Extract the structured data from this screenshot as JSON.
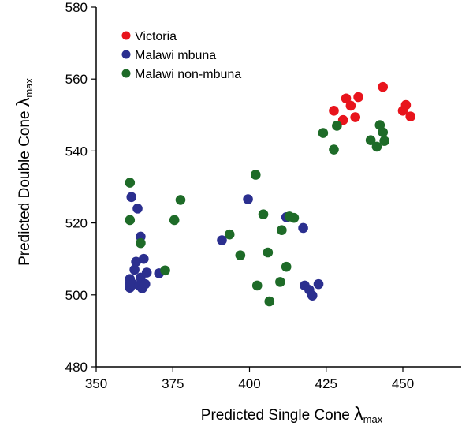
{
  "chart_data": {
    "type": "scatter",
    "xlabel": {
      "main": "Predicted Single Cone ",
      "symbol": "λ",
      "sub": "max"
    },
    "ylabel": {
      "main": "Predicted Double Cone ",
      "symbol": "λ",
      "sub": "max"
    },
    "xlim": [
      350,
      470
    ],
    "ylim": [
      480,
      580
    ],
    "xticks": [
      350,
      375,
      400,
      425,
      450
    ],
    "yticks": [
      480,
      500,
      520,
      540,
      560,
      580
    ],
    "legend_position": "top-left",
    "series": [
      {
        "name": "Victoria",
        "color": "#e8141c",
        "points": [
          [
            427.5,
            551.2
          ],
          [
            430.5,
            548.6
          ],
          [
            431.5,
            554.6
          ],
          [
            433,
            552.6
          ],
          [
            434.5,
            549.4
          ],
          [
            435.5,
            555.0
          ],
          [
            443.5,
            557.8
          ],
          [
            450,
            551.2
          ],
          [
            451,
            552.8
          ],
          [
            452.5,
            549.6
          ]
        ]
      },
      {
        "name": "Malawi mbuna",
        "color": "#2b2f8f",
        "points": [
          [
            361,
            502.0
          ],
          [
            361,
            503.2
          ],
          [
            361,
            504.4
          ],
          [
            361.5,
            527.2
          ],
          [
            362,
            503.0
          ],
          [
            362.5,
            507.0
          ],
          [
            363,
            509.2
          ],
          [
            363.5,
            524.0
          ],
          [
            364,
            502.6
          ],
          [
            364.5,
            504.8
          ],
          [
            364.5,
            516.2
          ],
          [
            365,
            501.8
          ],
          [
            365.5,
            510.0
          ],
          [
            366,
            503.0
          ],
          [
            366.5,
            506.2
          ],
          [
            370.5,
            506.0
          ],
          [
            391,
            515.2
          ],
          [
            399.5,
            526.6
          ],
          [
            412,
            521.6
          ],
          [
            417.5,
            518.6
          ],
          [
            418,
            502.6
          ],
          [
            419.5,
            501.4
          ],
          [
            420.5,
            499.8
          ],
          [
            422.5,
            503.0
          ]
        ]
      },
      {
        "name": "Malawi non-mbuna",
        "color": "#1e6b28",
        "points": [
          [
            361,
            531.2
          ],
          [
            361,
            520.8
          ],
          [
            364.5,
            514.4
          ],
          [
            372.5,
            506.8
          ],
          [
            375.5,
            520.8
          ],
          [
            377.5,
            526.4
          ],
          [
            393.5,
            516.8
          ],
          [
            397,
            511.0
          ],
          [
            402,
            533.4
          ],
          [
            402.5,
            502.6
          ],
          [
            404.5,
            522.4
          ],
          [
            406,
            511.8
          ],
          [
            406.5,
            498.2
          ],
          [
            410,
            503.6
          ],
          [
            410.5,
            518.0
          ],
          [
            412,
            507.8
          ],
          [
            413,
            521.8
          ],
          [
            414.5,
            521.4
          ],
          [
            424,
            545.0
          ],
          [
            427.5,
            540.4
          ],
          [
            428.5,
            547.0
          ],
          [
            439.5,
            543.0
          ],
          [
            441.5,
            541.2
          ],
          [
            442.5,
            547.2
          ],
          [
            443.5,
            545.2
          ],
          [
            444,
            542.8
          ]
        ]
      }
    ]
  }
}
